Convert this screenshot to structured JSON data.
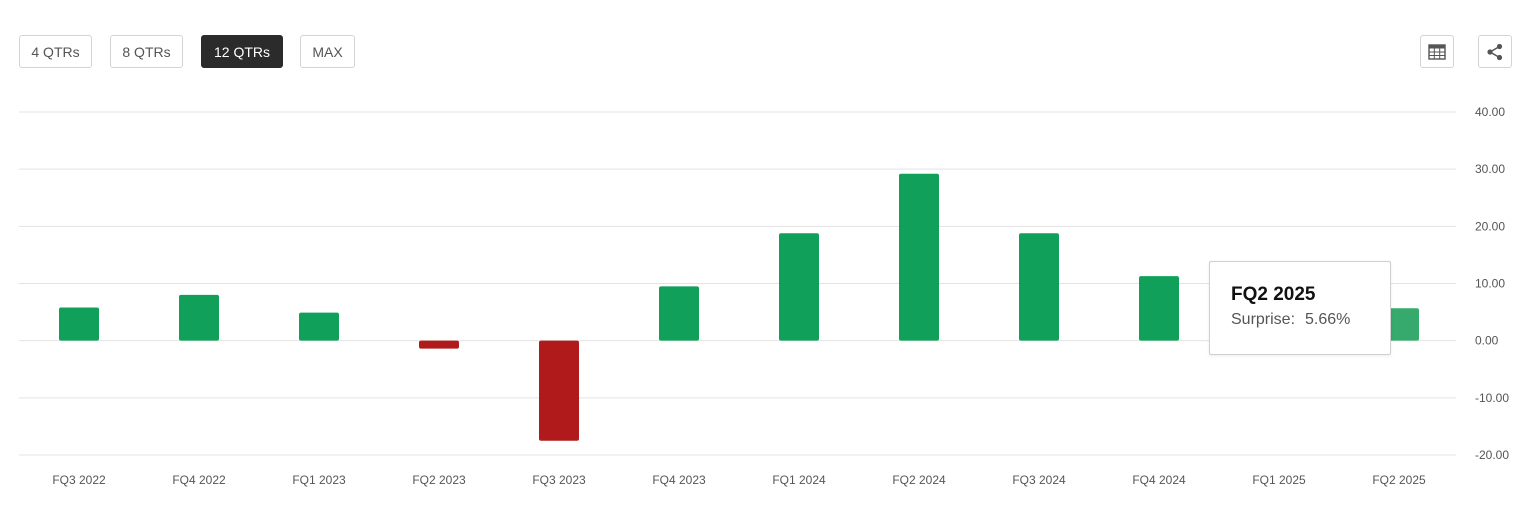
{
  "range_buttons": [
    {
      "label": "4 QTRs",
      "active": false
    },
    {
      "label": "8 QTRs",
      "active": false
    },
    {
      "label": "12 QTRs",
      "active": true
    },
    {
      "label": "MAX",
      "active": false
    }
  ],
  "icons": {
    "table": "table-icon",
    "share": "share-icon"
  },
  "colors": {
    "positive": "#11a05a",
    "positive_hover": "#35aa6c",
    "negative": "#b11a1a",
    "grid": "#e3e3e3",
    "tick": "#555555"
  },
  "tooltip": {
    "title": "FQ2 2025",
    "label": "Surprise:",
    "value": "5.66%"
  },
  "chart_data": {
    "type": "bar",
    "categories": [
      "FQ3 2022",
      "FQ4 2022",
      "FQ1 2023",
      "FQ2 2023",
      "FQ3 2023",
      "FQ4 2023",
      "FQ1 2024",
      "FQ2 2024",
      "FQ3 2024",
      "FQ4 2024",
      "FQ1 2025",
      "FQ2 2025"
    ],
    "values": [
      5.8,
      8.0,
      4.9,
      -1.4,
      -17.5,
      9.5,
      18.8,
      29.2,
      18.8,
      11.3,
      null,
      5.66
    ],
    "ylim": [
      -20,
      40
    ],
    "yticks": [
      "40.00",
      "30.00",
      "20.00",
      "10.00",
      "0.00",
      "-10.00",
      "-20.00"
    ],
    "ytick_values": [
      40,
      30,
      20,
      10,
      0,
      -10,
      -20
    ],
    "grid": true,
    "y_axis_position": "right",
    "highlighted_category": "FQ2 2025"
  }
}
